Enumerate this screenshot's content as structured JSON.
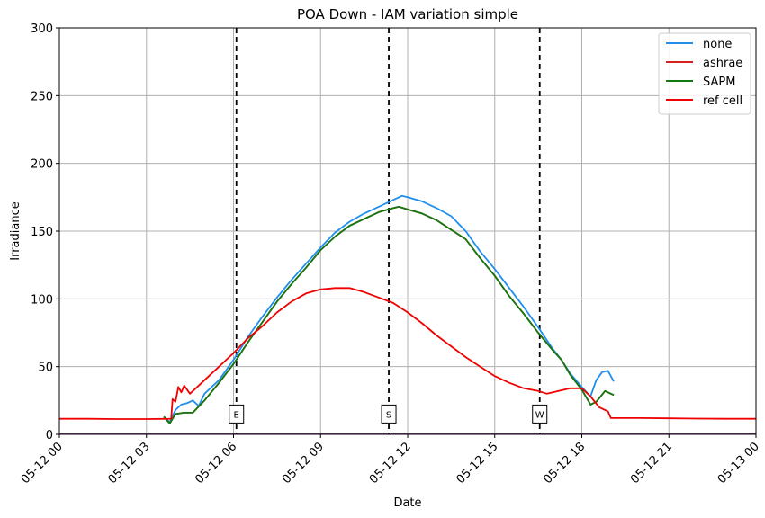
{
  "chart_data": {
    "type": "line",
    "title": "POA Down - IAM variation simple",
    "xlabel": "Date",
    "ylabel": "Irradiance",
    "xlim": [
      "05-12 00",
      "05-13 00"
    ],
    "ylim": [
      0,
      300
    ],
    "grid": true,
    "legend_position": "top-right",
    "x_ticks": [
      "05-12 00",
      "05-12 03",
      "05-12 06",
      "05-12 09",
      "05-12 12",
      "05-12 15",
      "05-12 18",
      "05-12 21",
      "05-13 00"
    ],
    "y_ticks": [
      "0",
      "50",
      "100",
      "150",
      "200",
      "250",
      "300"
    ],
    "markers": [
      {
        "label": "E",
        "hour": 6.1
      },
      {
        "label": "S",
        "hour": 11.35
      },
      {
        "label": "W",
        "hour": 16.55
      }
    ],
    "series": [
      {
        "name": "none",
        "color": "#1f8fef",
        "points": [
          [
            3.6,
            13
          ],
          [
            3.8,
            9
          ],
          [
            4.0,
            18
          ],
          [
            4.2,
            22
          ],
          [
            4.4,
            23
          ],
          [
            4.6,
            25
          ],
          [
            4.8,
            21
          ],
          [
            5.0,
            30
          ],
          [
            5.5,
            40
          ],
          [
            6.0,
            55
          ],
          [
            6.5,
            72
          ],
          [
            7.0,
            87
          ],
          [
            7.5,
            101
          ],
          [
            8.0,
            114
          ],
          [
            8.5,
            126
          ],
          [
            9.0,
            138
          ],
          [
            9.5,
            149
          ],
          [
            10.0,
            157
          ],
          [
            10.5,
            163
          ],
          [
            11.0,
            168
          ],
          [
            11.5,
            173
          ],
          [
            11.8,
            176
          ],
          [
            12.0,
            175
          ],
          [
            12.5,
            172
          ],
          [
            13.0,
            167
          ],
          [
            13.5,
            161
          ],
          [
            14.0,
            150
          ],
          [
            14.5,
            135
          ],
          [
            15.0,
            122
          ],
          [
            15.5,
            108
          ],
          [
            16.0,
            94
          ],
          [
            16.5,
            79
          ],
          [
            17.0,
            63
          ],
          [
            17.3,
            55
          ],
          [
            17.6,
            45
          ],
          [
            18.0,
            35
          ],
          [
            18.3,
            28
          ],
          [
            18.5,
            40
          ],
          [
            18.7,
            46
          ],
          [
            18.9,
            47
          ],
          [
            19.1,
            39
          ]
        ]
      },
      {
        "name": "ashrae",
        "color": "#d62020",
        "points": [
          [
            3.6,
            13
          ],
          [
            3.8,
            8
          ],
          [
            4.0,
            15
          ],
          [
            4.3,
            16
          ],
          [
            4.6,
            16
          ],
          [
            5.0,
            25
          ],
          [
            5.5,
            38
          ],
          [
            6.0,
            52
          ],
          [
            6.5,
            68
          ],
          [
            7.0,
            83
          ],
          [
            7.5,
            98
          ],
          [
            8.0,
            111
          ],
          [
            8.5,
            123
          ],
          [
            9.0,
            136
          ],
          [
            9.5,
            146
          ],
          [
            10.0,
            154
          ],
          [
            10.5,
            159
          ],
          [
            11.0,
            164
          ],
          [
            11.5,
            167
          ],
          [
            11.7,
            168
          ],
          [
            12.0,
            166
          ],
          [
            12.5,
            163
          ],
          [
            13.0,
            158
          ],
          [
            13.5,
            151
          ],
          [
            14.0,
            144
          ],
          [
            14.5,
            130
          ],
          [
            15.0,
            117
          ],
          [
            15.5,
            102
          ],
          [
            16.0,
            89
          ],
          [
            16.5,
            75
          ],
          [
            17.0,
            62
          ],
          [
            17.3,
            55
          ],
          [
            17.6,
            44
          ],
          [
            18.0,
            33
          ],
          [
            18.3,
            22
          ],
          [
            18.5,
            24
          ],
          [
            18.8,
            32
          ],
          [
            19.1,
            29
          ]
        ]
      },
      {
        "name": "SAPM",
        "color": "#107a10",
        "points": [
          [
            3.6,
            13
          ],
          [
            3.8,
            8
          ],
          [
            4.0,
            15
          ],
          [
            4.3,
            16
          ],
          [
            4.6,
            16
          ],
          [
            5.0,
            25
          ],
          [
            5.5,
            38
          ],
          [
            6.0,
            52
          ],
          [
            6.5,
            68
          ],
          [
            7.0,
            83
          ],
          [
            7.5,
            98
          ],
          [
            8.0,
            111
          ],
          [
            8.5,
            123
          ],
          [
            9.0,
            136
          ],
          [
            9.5,
            146
          ],
          [
            10.0,
            154
          ],
          [
            10.5,
            159
          ],
          [
            11.0,
            164
          ],
          [
            11.5,
            167
          ],
          [
            11.7,
            168
          ],
          [
            12.0,
            166
          ],
          [
            12.5,
            163
          ],
          [
            13.0,
            158
          ],
          [
            13.5,
            151
          ],
          [
            14.0,
            144
          ],
          [
            14.5,
            130
          ],
          [
            15.0,
            117
          ],
          [
            15.5,
            102
          ],
          [
            16.0,
            89
          ],
          [
            16.5,
            75
          ],
          [
            17.0,
            62
          ],
          [
            17.3,
            55
          ],
          [
            17.6,
            44
          ],
          [
            18.0,
            33
          ],
          [
            18.3,
            22
          ],
          [
            18.5,
            24
          ],
          [
            18.8,
            32
          ],
          [
            19.1,
            29
          ]
        ]
      },
      {
        "name": "ref cell",
        "color": "#f00000",
        "points": [
          [
            0,
            11.5
          ],
          [
            1,
            11.5
          ],
          [
            2,
            11.3
          ],
          [
            3,
            11.3
          ],
          [
            3.85,
            11.5
          ],
          [
            3.9,
            26
          ],
          [
            4.0,
            24
          ],
          [
            4.1,
            35
          ],
          [
            4.2,
            31
          ],
          [
            4.3,
            36
          ],
          [
            4.5,
            30
          ],
          [
            4.8,
            36
          ],
          [
            5.0,
            40
          ],
          [
            5.5,
            50
          ],
          [
            6.0,
            60
          ],
          [
            6.5,
            71
          ],
          [
            7.0,
            80
          ],
          [
            7.5,
            90
          ],
          [
            8.0,
            98
          ],
          [
            8.5,
            104
          ],
          [
            9.0,
            107
          ],
          [
            9.5,
            108
          ],
          [
            10.0,
            108
          ],
          [
            10.5,
            105
          ],
          [
            11.0,
            101
          ],
          [
            11.5,
            97
          ],
          [
            12.0,
            90
          ],
          [
            12.5,
            82
          ],
          [
            13.0,
            73
          ],
          [
            13.5,
            65
          ],
          [
            14.0,
            57
          ],
          [
            14.5,
            50
          ],
          [
            15.0,
            43
          ],
          [
            15.5,
            38
          ],
          [
            16.0,
            34
          ],
          [
            16.5,
            32
          ],
          [
            16.8,
            30
          ],
          [
            17.2,
            32
          ],
          [
            17.6,
            34
          ],
          [
            18.0,
            34
          ],
          [
            18.3,
            28
          ],
          [
            18.6,
            20
          ],
          [
            18.9,
            17
          ],
          [
            19.0,
            12
          ],
          [
            20,
            12
          ],
          [
            21,
            11.8
          ],
          [
            22,
            11.6
          ],
          [
            23,
            11.5
          ],
          [
            24,
            11.5
          ]
        ]
      },
      {
        "name": "",
        "color": "#660066",
        "points": [
          [
            0,
            0
          ],
          [
            24,
            0
          ]
        ]
      }
    ]
  }
}
